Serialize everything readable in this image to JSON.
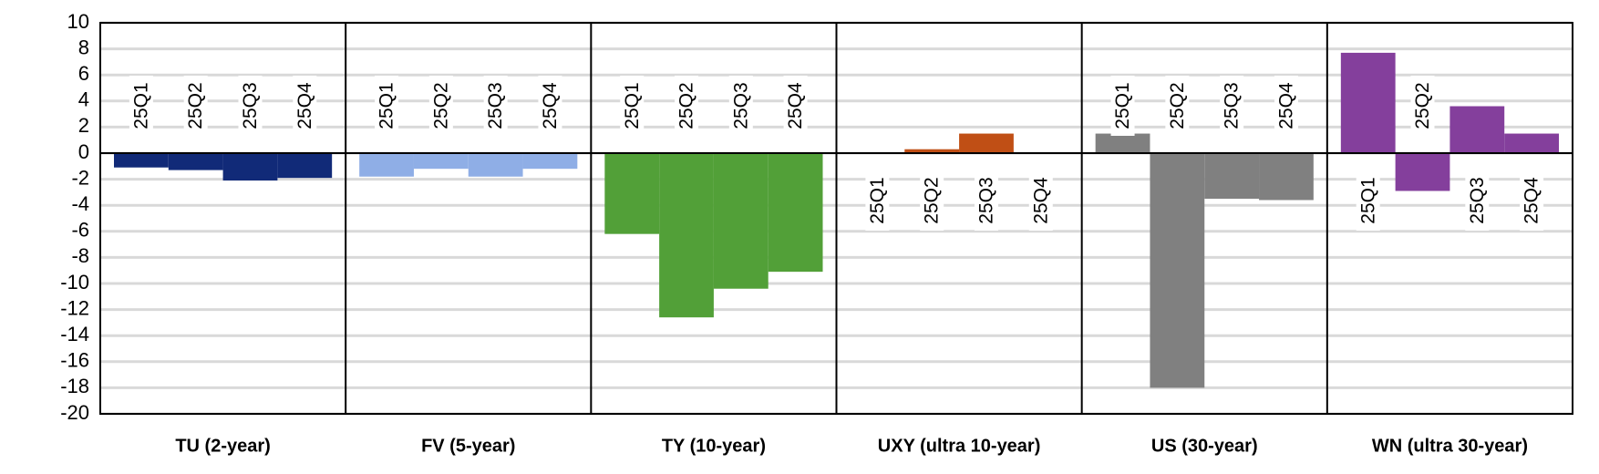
{
  "chart_data": {
    "type": "bar",
    "categories": [
      "25Q1",
      "25Q2",
      "25Q3",
      "25Q4"
    ],
    "ylim": [
      -20,
      10
    ],
    "yticks": [
      10,
      8,
      6,
      4,
      2,
      0,
      -2,
      -4,
      -6,
      -8,
      -10,
      -12,
      -14,
      -16,
      -18,
      -20
    ],
    "grid": true,
    "series": [
      {
        "name": "TU (2-year)",
        "color": "#112a78",
        "values": [
          -1.1,
          -1.3,
          -2.1,
          -1.9
        ],
        "category_label_side": [
          "above",
          "above",
          "above",
          "above"
        ]
      },
      {
        "name": "FV (5-year)",
        "color": "#8faee6",
        "values": [
          -1.8,
          -1.2,
          -1.8,
          -1.2
        ],
        "category_label_side": [
          "above",
          "above",
          "above",
          "above"
        ]
      },
      {
        "name": "TY (10-year)",
        "color": "#52a038",
        "values": [
          -6.2,
          -12.6,
          -10.4,
          -9.1
        ],
        "category_label_side": [
          "above",
          "above",
          "above",
          "above"
        ]
      },
      {
        "name": "UXY (ultra 10-year)",
        "color": "#c04f15",
        "values": [
          0,
          0.3,
          1.5,
          0
        ],
        "category_label_side": [
          "below",
          "below",
          "below",
          "below"
        ]
      },
      {
        "name": "US (30-year)",
        "color": "#808080",
        "values": [
          1.5,
          -18.0,
          -3.5,
          -3.6
        ],
        "category_label_side": [
          "above",
          "above",
          "above",
          "above"
        ]
      },
      {
        "name": "WN (ultra 30-year)",
        "color": "#843f9c",
        "values": [
          7.7,
          -2.9,
          3.6,
          1.5
        ],
        "category_label_side": [
          "below",
          "above",
          "below",
          "below"
        ]
      }
    ]
  }
}
